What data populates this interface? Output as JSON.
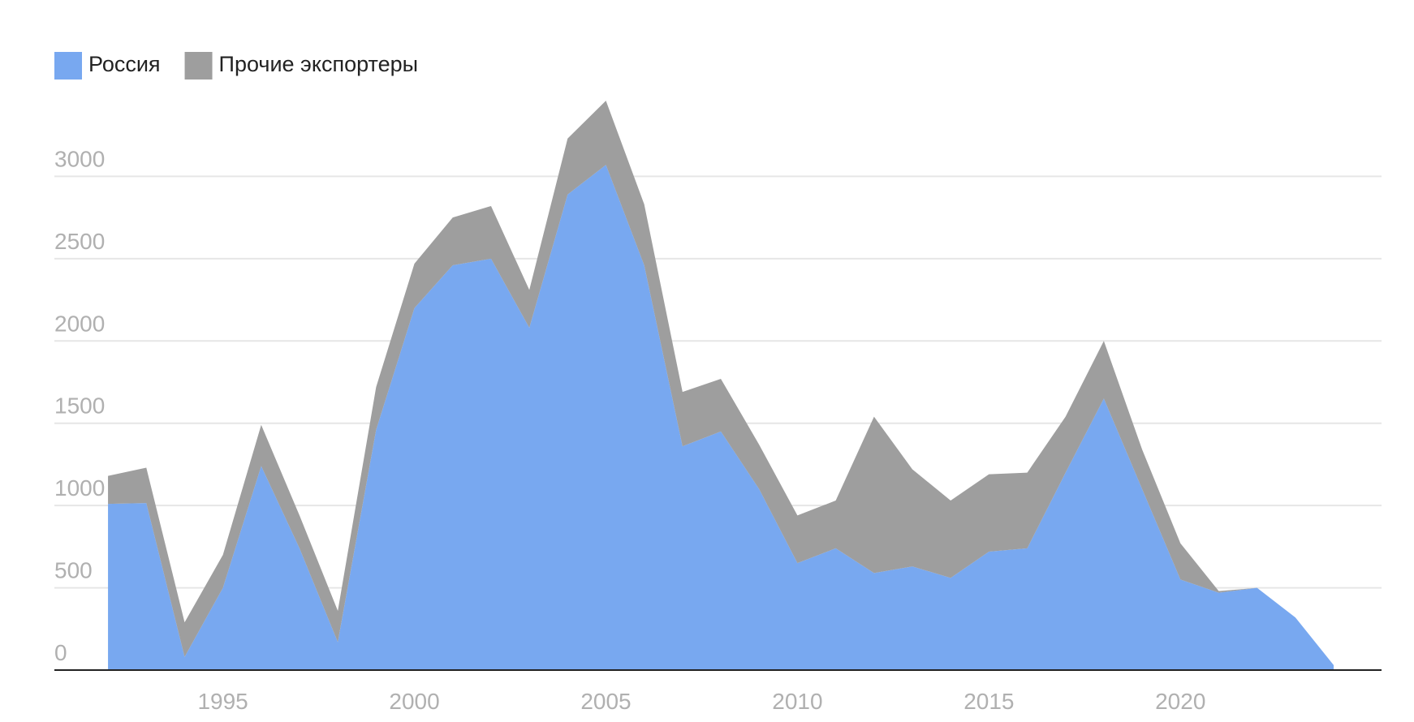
{
  "chart_data": {
    "type": "stacked_area",
    "x": [
      1992,
      1993,
      1994,
      1995,
      1996,
      1997,
      1998,
      1999,
      2000,
      2001,
      2002,
      2003,
      2004,
      2005,
      2006,
      2007,
      2008,
      2009,
      2010,
      2011,
      2012,
      2013,
      2014,
      2015,
      2016,
      2017,
      2018,
      2019,
      2020,
      2021,
      2022,
      2023,
      2024
    ],
    "series": [
      {
        "name": "Россия",
        "color": "#78a8f0",
        "values": [
          1010,
          1015,
          80,
          500,
          1240,
          740,
          170,
          1460,
          2200,
          2460,
          2500,
          2080,
          2890,
          3070,
          2460,
          1360,
          1450,
          1100,
          650,
          740,
          590,
          630,
          560,
          720,
          740,
          1200,
          1650,
          1100,
          550,
          470,
          500,
          320,
          30
        ]
      },
      {
        "name": "Прочие экспортеры",
        "color": "#9e9e9e",
        "values": [
          170,
          215,
          210,
          200,
          250,
          200,
          190,
          260,
          270,
          290,
          320,
          230,
          340,
          390,
          370,
          330,
          320,
          270,
          290,
          290,
          950,
          590,
          470,
          470,
          460,
          340,
          350,
          240,
          220,
          10,
          0,
          0,
          0
        ]
      }
    ],
    "xlim": [
      1990.6,
      2025.25
    ],
    "xticks": [
      1995,
      2000,
      2005,
      2010,
      2015,
      2020
    ],
    "ylim": [
      0,
      3500
    ],
    "yticks": [
      0,
      500,
      1000,
      1500,
      2000,
      2500,
      3000
    ],
    "grid": true,
    "legend": "top-left"
  }
}
